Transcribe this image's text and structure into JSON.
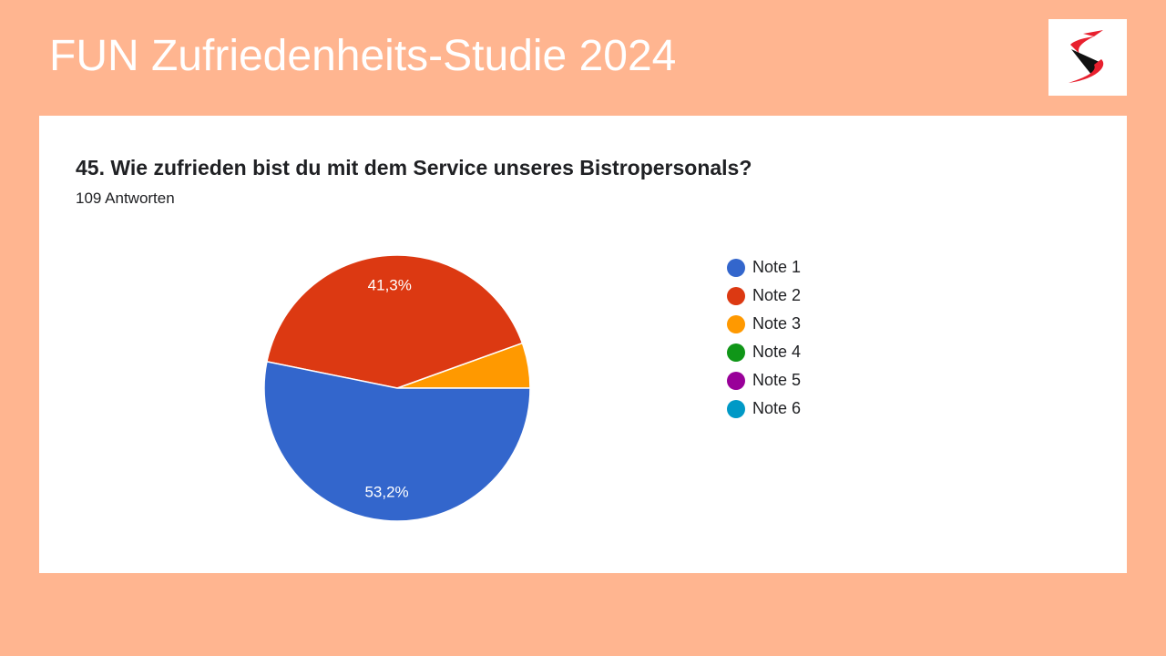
{
  "slide": {
    "title": "FUN Zufriedenheits-Studie 2024"
  },
  "logo": {
    "icon": "brand-s-logo",
    "colors": [
      "#E8202E",
      "#111111"
    ]
  },
  "question": {
    "title": "45. Wie zufrieden bist du mit dem Service unseres Bistropersonals?",
    "responses": "109 Antworten"
  },
  "chart_data": {
    "type": "pie",
    "title": "45. Wie zufrieden bist du mit dem Service unseres Bistropersonals?",
    "subtitle": "109 Antworten",
    "categories": [
      "Note 1",
      "Note 2",
      "Note 3",
      "Note 4",
      "Note 5",
      "Note 6"
    ],
    "values": [
      53.2,
      41.3,
      5.5,
      0,
      0,
      0
    ],
    "data_labels": [
      "53,2%",
      "41,3%",
      "",
      "",
      "",
      ""
    ],
    "colors": [
      "#3366CC",
      "#DC3912",
      "#FF9900",
      "#109618",
      "#990099",
      "#0099C6"
    ],
    "legend_position": "right"
  }
}
